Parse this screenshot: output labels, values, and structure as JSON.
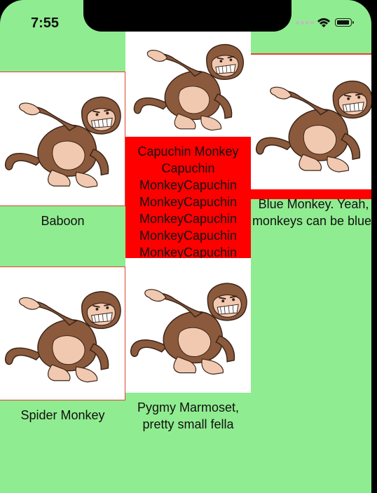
{
  "status_bar": {
    "time": "7:55"
  },
  "cells": [
    {
      "id": "baboon",
      "label": "Baboon",
      "image": "monkey-image"
    },
    {
      "id": "capuchin",
      "label": "Capuchin Monkey Capuchin MonkeyCapuchin MonkeyCapuchin MonkeyCapuchin MonkeyCapuchin MonkeyCapuchin",
      "image": "monkey-image"
    },
    {
      "id": "blue",
      "label": "Blue Monkey. Yeah, monkeys can be blue!",
      "image": "monkey-image"
    },
    {
      "id": "spider",
      "label": "Spider Monkey",
      "image": "monkey-image"
    },
    {
      "id": "pygmy",
      "label": "Pygmy Marmoset, pretty small fella",
      "image": "monkey-image"
    }
  ],
  "colors": {
    "background": "#90ec90",
    "highlight": "#ff0000",
    "border": "#dd4433"
  }
}
